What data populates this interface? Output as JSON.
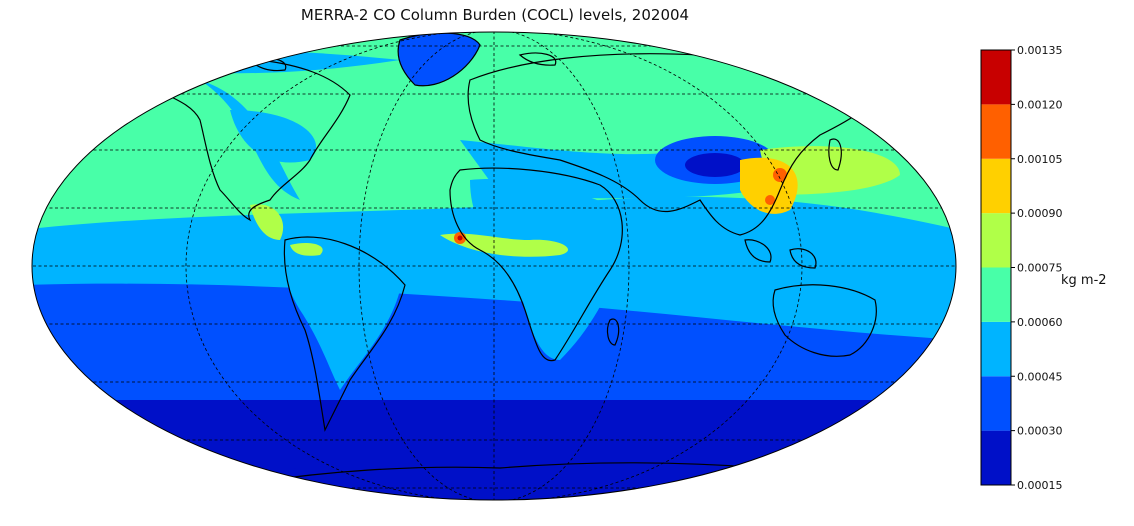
{
  "title": "MERRA-2 CO Column Burden (COCL) levels, 202004",
  "colorbar": {
    "unit": "kg m-2",
    "ticks": [
      "0.00015",
      "0.00030",
      "0.00045",
      "0.00060",
      "0.00075",
      "0.00090",
      "0.00105",
      "0.00120",
      "0.00135"
    ],
    "colors": [
      "#0010c8",
      "#0050ff",
      "#00b4ff",
      "#48ffa8",
      "#b0ff48",
      "#ffd000",
      "#ff6000",
      "#c80000"
    ]
  },
  "map_colors": {
    "ocean_south": "#0010c8",
    "south_mid": "#0050ff",
    "tropics": "#00b4ff",
    "north": "#48ffa8",
    "plume": "#b0ff48",
    "hot": "#ffd000",
    "veryhot": "#ff6000",
    "extreme": "#c80000"
  }
}
